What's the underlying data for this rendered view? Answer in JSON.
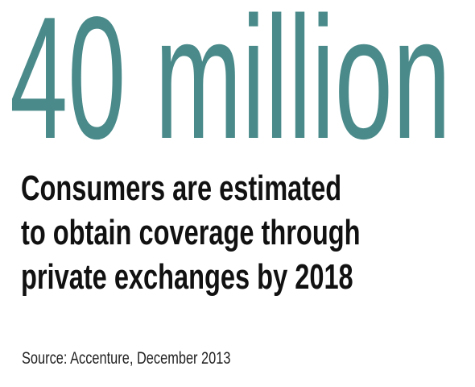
{
  "headline": {
    "text": "40 million",
    "color": "#4a8a8a"
  },
  "subhead": {
    "lines": [
      "Consumers are estimated",
      "to obtain coverage through",
      "private exchanges by 2018"
    ],
    "color": "#111111"
  },
  "source": {
    "text": "Source: Accenture, December 2013"
  }
}
